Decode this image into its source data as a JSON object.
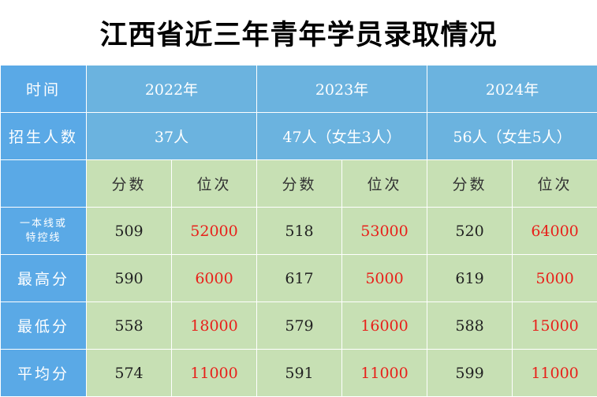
{
  "title": "江西省近三年青年学员录取情况",
  "header": {
    "time_label": "时间",
    "years": [
      "2022年",
      "2023年",
      "2024年"
    ]
  },
  "enrollment": {
    "label": "招生人数",
    "values": [
      "37人",
      "47人（女生3人）",
      "56人（女生5人）"
    ]
  },
  "sub_header": {
    "score": "分数",
    "rank": "位次"
  },
  "rows": [
    {
      "label_line1": "一本线或",
      "label_line2": "特控线",
      "scores": [
        "509",
        "518",
        "520"
      ],
      "ranks": [
        "52000",
        "53000",
        "64000"
      ]
    },
    {
      "label": "最高分",
      "scores": [
        "590",
        "617",
        "619"
      ],
      "ranks": [
        "6000",
        "5000",
        "5000"
      ]
    },
    {
      "label": "最低分",
      "scores": [
        "558",
        "579",
        "588"
      ],
      "ranks": [
        "18000",
        "16000",
        "15000"
      ]
    },
    {
      "label": "平均分",
      "scores": [
        "574",
        "591",
        "599"
      ],
      "ranks": [
        "11000",
        "11000",
        "11000"
      ]
    }
  ],
  "colors": {
    "header_blue": "#6bb3df",
    "label_blue": "#5aa9e6",
    "body_green": "#c7e0b4",
    "rank_red": "#e8201a"
  }
}
